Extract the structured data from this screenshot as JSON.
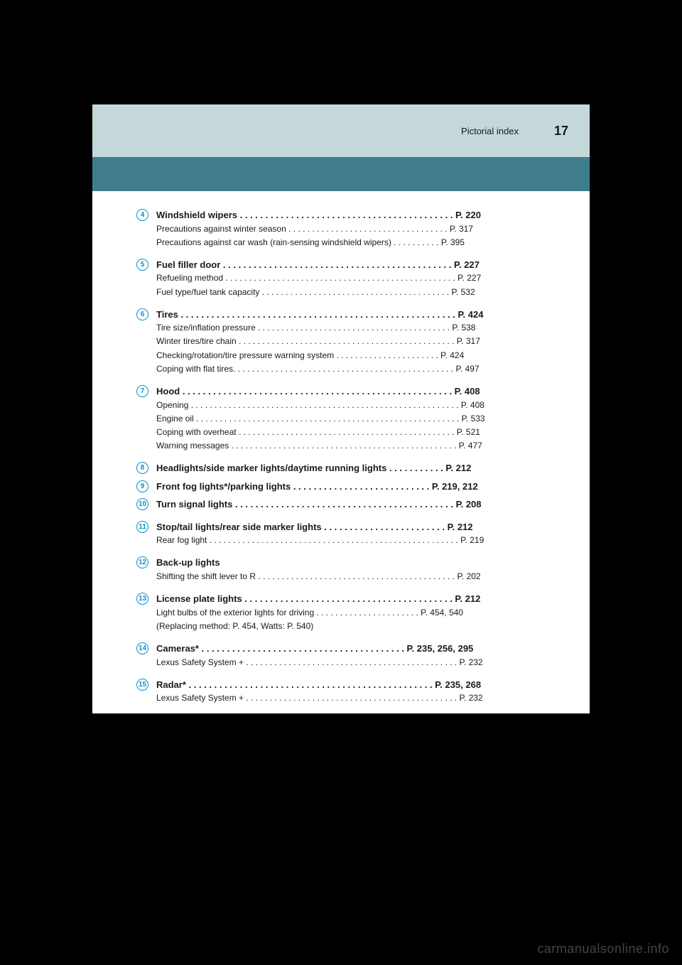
{
  "header": {
    "section_title": "Pictorial index",
    "page_number": "17"
  },
  "colors": {
    "header_light_bg": "#c4d8da",
    "header_dark_bg": "#3f7d8a",
    "bullet_border": "#0891d1",
    "page_bg": "#ffffff",
    "body_bg": "#000000"
  },
  "entries": [
    {
      "number": "4",
      "title": "Windshield wipers . . . . . . . . . . . . . . . . . . . . . . . . . . . . . . . . . . . . . . . . . .  P. 220",
      "lines": [
        "Precautions against winter season  . . . . . . . . . . . . . . . . . . . . . . . . . . . . . . . . . . P. 317",
        "Precautions against car wash (rain-sensing windshield wipers) . . . . . . . . . .  P. 395"
      ]
    },
    {
      "number": "5",
      "title": "Fuel filler door  . . . . . . . . . . . . . . . . . . . . . . . . . . . . . . . . . . . . . . . . . . . . . P. 227",
      "lines": [
        "Refueling method  . . . . . . . . . . . . . . . . . . . . . . . . . . . . . . . . . . . . . . . . . . . . . . . . . P. 227",
        "Fuel type/fuel tank capacity . . . . . . . . . . . . . . . . . . . . . . . . . . . . . . . . . . . . . . . .  P. 532"
      ]
    },
    {
      "number": "6",
      "title": "Tires . . . . . . . . . . . . . . . . . . . . . . . . . . . . . . . . . . . . . . . . . . . . . . . . . . . . . . P. 424",
      "lines": [
        "Tire size/inflation pressure  . . . . . . . . . . . . . . . . . . . . . . . . . . . . . . . . . . . . . . . . .  P. 538",
        "Winter tires/tire chain . . . . . . . . . . . . . . . . . . . . . . . . . . . . . . . . . . . . . . . . . . . . . . P. 317",
        "Checking/rotation/tire pressure warning system  . . . . . . . . . . . . . . . . . . . . . .  P. 424",
        "Coping with flat tires. . . . . . . . . . . . . . . . . . . . . . . . . . . . . . . . . . . . . . . . . . . . . . .  P. 497"
      ]
    },
    {
      "number": "7",
      "title": "Hood  . . . . . . . . . . . . . . . . . . . . . . . . . . . . . . . . . . . . . . . . . . . . . . . . . . . . . P. 408",
      "lines": [
        "Opening . . . . . . . . . . . . . . . . . . . . . . . . . . . . . . . . . . . . . . . . . . . . . . . . . . . . . . . . .  P. 408",
        "Engine oil . . . . . . . . . . . . . . . . . . . . . . . . . . . . . . . . . . . . . . . . . . . . . . . . . . . . . . . .  P. 533",
        "Coping with overheat  . . . . . . . . . . . . . . . . . . . . . . . . . . . . . . . . . . . . . . . . . . . . . . P. 521",
        "Warning messages . . . . . . . . . . . . . . . . . . . . . . . . . . . . . . . . . . . . . . . . . . . . . . . .  P. 477"
      ]
    },
    {
      "number": "8",
      "title": "Headlights/side marker lights/daytime running lights  . . . . . . . . . . .  P. 212",
      "lines": []
    },
    {
      "number": "9",
      "title": "Front fog lights*/parking lights . . . . . . . . . . . . . . . . . . . . . . . . . . . P. 219, 212",
      "lines": []
    },
    {
      "number": "10",
      "title": "Turn signal lights . . . . . . . . . . . . . . . . . . . . . . . . . . . . . . . . . . . . . . . . . . . P. 208",
      "lines": []
    },
    {
      "number": "11",
      "title": "Stop/tail lights/rear side marker lights  . . . . . . . . . . . . . . . . . . . . . . . .  P. 212",
      "lines": [
        "Rear fog light  . . . . . . . . . . . . . . . . . . . . . . . . . . . . . . . . . . . . . . . . . . . . . . . . . . . . .  P. 219"
      ]
    },
    {
      "number": "12",
      "title": "Back-up lights",
      "lines": [
        "Shifting the shift lever to R . . . . . . . . . . . . . . . . . . . . . . . . . . . . . . . . . . . . . . . . . .  P. 202"
      ]
    },
    {
      "number": "13",
      "title": "License plate lights . . . . . . . . . . . . . . . . . . . . . . . . . . . . . . . . . . . . . . . . .  P. 212",
      "lines": [
        "Light bulbs of the exterior lights for driving . . . . . . . . . . . . . . . . . . . . . . P. 454, 540",
        "(Replacing method: P. 454, Watts: P. 540)"
      ]
    },
    {
      "number": "14",
      "title": "Cameras*  . . . . . . . . . . . . . . . . . . . . . . . . . . . . . . . . . . . . . . . .  P. 235, 256, 295",
      "lines": [
        "Lexus Safety System +  . . . . . . . . . . . . . . . . . . . . . . . . . . . . . . . . . . . . . . . . . . . . .  P. 232"
      ]
    },
    {
      "number": "15",
      "title": "Radar* . . . . . . . . . . . . . . . . . . . . . . . . . . . . . . . . . . . . . . . . . . . . . . . . P. 235, 268",
      "lines": [
        "Lexus Safety System +  . . . . . . . . . . . . . . . . . . . . . . . . . . . . . . . . . . . . . . . . . . . . .  P. 232"
      ]
    }
  ],
  "footer_watermark": "carmanualsonline.info"
}
